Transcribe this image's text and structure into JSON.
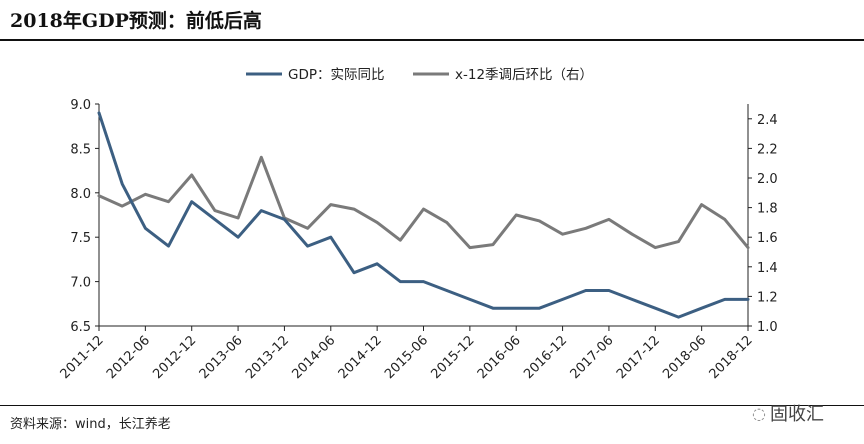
{
  "header": {
    "title": "2018年GDP预测：前低后高"
  },
  "footer": {
    "source": "资料来源：wind，长江养老",
    "watermark": "固收汇",
    "watermark_icon": "wechat-icon"
  },
  "colors": {
    "gdp": "#3c5f82",
    "qoq": "#7a7a7a",
    "axis": "#222222"
  },
  "chart_data": {
    "type": "line",
    "title": "2018年GDP预测：前低后高",
    "categories": [
      "2011-12",
      "2012-03",
      "2012-06",
      "2012-09",
      "2012-12",
      "2013-03",
      "2013-06",
      "2013-09",
      "2013-12",
      "2014-03",
      "2014-06",
      "2014-09",
      "2014-12",
      "2015-03",
      "2015-06",
      "2015-09",
      "2015-12",
      "2016-03",
      "2016-06",
      "2016-09",
      "2016-12",
      "2017-03",
      "2017-06",
      "2017-09",
      "2017-12",
      "2018-03",
      "2018-06",
      "2018-09",
      "2018-12"
    ],
    "x_tick_labels": [
      "2011-12",
      "2012-06",
      "2012-12",
      "2013-06",
      "2013-12",
      "2014-06",
      "2014-12",
      "2015-06",
      "2015-12",
      "2016-06",
      "2016-12",
      "2017-06",
      "2017-12",
      "2018-06",
      "2018-12"
    ],
    "y_left": {
      "ylim": [
        6.5,
        9.0
      ],
      "ticks": [
        "6.5",
        "7.0",
        "7.5",
        "8.0",
        "8.5",
        "9.0"
      ]
    },
    "y_right": {
      "ylim": [
        1.0,
        2.5
      ],
      "ticks": [
        "1.0",
        "1.2",
        "1.4",
        "1.6",
        "1.8",
        "2.0",
        "2.2",
        "2.4"
      ]
    },
    "legend_position": "top-center",
    "series": [
      {
        "name": "GDP：实际同比",
        "axis": "left",
        "values": [
          8.9,
          8.1,
          7.6,
          7.4,
          7.9,
          7.7,
          7.5,
          7.8,
          7.7,
          7.4,
          7.5,
          7.1,
          7.2,
          7.0,
          7.0,
          6.9,
          6.8,
          6.7,
          6.7,
          6.7,
          6.8,
          6.9,
          6.9,
          6.8,
          6.7,
          6.6,
          6.7,
          6.8,
          6.8
        ]
      },
      {
        "name": "x-12季调后环比（右）",
        "axis": "right",
        "values": [
          1.88,
          1.81,
          1.89,
          1.84,
          2.02,
          1.78,
          1.73,
          2.14,
          1.73,
          1.66,
          1.82,
          1.79,
          1.7,
          1.58,
          1.79,
          1.7,
          1.53,
          1.55,
          1.75,
          1.71,
          1.62,
          1.66,
          1.72,
          1.62,
          1.53,
          1.57,
          1.82,
          1.72,
          1.53
        ]
      }
    ]
  }
}
